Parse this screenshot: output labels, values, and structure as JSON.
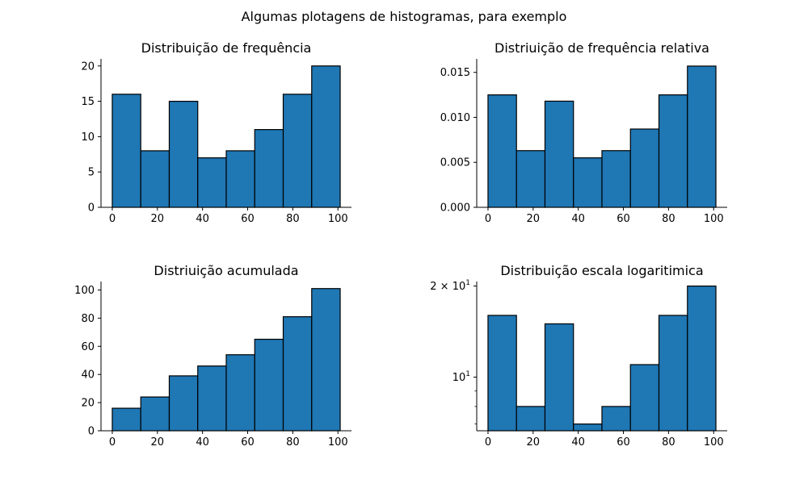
{
  "figure": {
    "suptitle": "Algumas plotagens de histogramas, para exemplo",
    "bar_color": "#1f77b4",
    "edge_color": "#000000"
  },
  "chart_data": [
    {
      "type": "bar",
      "title": "Distribuição de frequência",
      "bin_edges": [
        0,
        12.625,
        25.25,
        37.875,
        50.5,
        63.125,
        75.75,
        88.375,
        101
      ],
      "values": [
        16,
        8,
        15,
        7,
        8,
        11,
        16,
        20
      ],
      "xlim": [
        -5,
        106
      ],
      "ylim": [
        0,
        21
      ],
      "x_scale": "linear",
      "y_scale": "linear",
      "xticks": [
        0,
        20,
        40,
        60,
        80,
        100
      ],
      "xtick_labels": [
        "0",
        "20",
        "40",
        "60",
        "80",
        "100"
      ],
      "yticks": [
        0,
        5,
        10,
        15,
        20
      ],
      "ytick_labels": [
        "0",
        "5",
        "10",
        "15",
        "20"
      ],
      "grid": false
    },
    {
      "type": "bar",
      "title": "Distriuição de frequência relativa",
      "bin_edges": [
        0,
        12.625,
        25.25,
        37.875,
        50.5,
        63.125,
        75.75,
        88.375,
        101
      ],
      "values": [
        0.0125,
        0.0063,
        0.0118,
        0.0055,
        0.0063,
        0.0087,
        0.0125,
        0.0157
      ],
      "xlim": [
        -5,
        106
      ],
      "ylim": [
        0,
        0.0165
      ],
      "x_scale": "linear",
      "y_scale": "linear",
      "xticks": [
        0,
        20,
        40,
        60,
        80,
        100
      ],
      "xtick_labels": [
        "0",
        "20",
        "40",
        "60",
        "80",
        "100"
      ],
      "yticks": [
        0,
        0.005,
        0.01,
        0.015
      ],
      "ytick_labels": [
        "0.000",
        "0.005",
        "0.010",
        "0.015"
      ],
      "grid": false
    },
    {
      "type": "bar",
      "title": "Distriuição acumulada",
      "bin_edges": [
        0,
        12.625,
        25.25,
        37.875,
        50.5,
        63.125,
        75.75,
        88.375,
        101
      ],
      "values": [
        16,
        24,
        39,
        46,
        54,
        65,
        81,
        101
      ],
      "xlim": [
        -5,
        106
      ],
      "ylim": [
        0,
        106
      ],
      "x_scale": "linear",
      "y_scale": "linear",
      "xticks": [
        0,
        20,
        40,
        60,
        80,
        100
      ],
      "xtick_labels": [
        "0",
        "20",
        "40",
        "60",
        "80",
        "100"
      ],
      "yticks": [
        0,
        20,
        40,
        60,
        80,
        100
      ],
      "ytick_labels": [
        "0",
        "20",
        "40",
        "60",
        "80",
        "100"
      ],
      "grid": false
    },
    {
      "type": "bar",
      "title": "Distribuição escala logaritimica",
      "bin_edges": [
        0,
        12.625,
        25.25,
        37.875,
        50.5,
        63.125,
        75.75,
        88.375,
        101
      ],
      "values": [
        16,
        8,
        15,
        7,
        8,
        11,
        16,
        20
      ],
      "xlim": [
        -5,
        106
      ],
      "ylim": [
        6.65,
        20.7
      ],
      "x_scale": "linear",
      "y_scale": "log",
      "xticks": [
        0,
        20,
        40,
        60,
        80,
        100
      ],
      "xtick_labels": [
        "0",
        "20",
        "40",
        "60",
        "80",
        "100"
      ],
      "yticks": [
        10,
        20
      ],
      "ytick_labels": [
        "10",
        "2 × 10"
      ],
      "ytick_exponent": "1",
      "yminorticks": [
        7,
        8,
        9
      ],
      "grid": false
    }
  ]
}
